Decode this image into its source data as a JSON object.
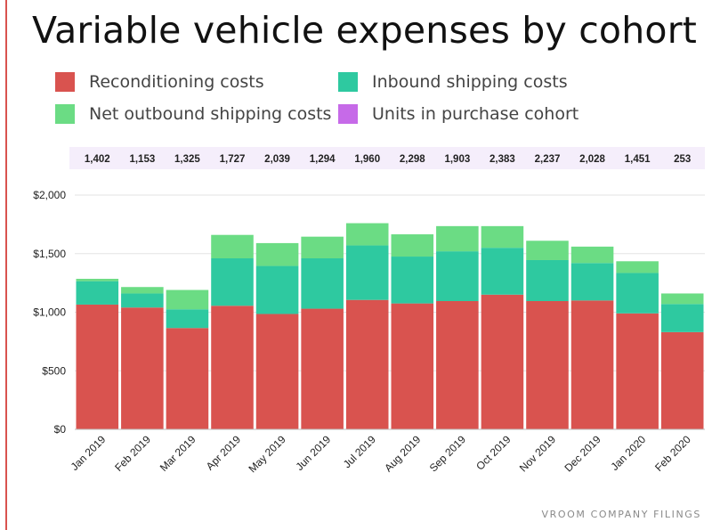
{
  "title": "Variable vehicle expenses by cohort",
  "source": "VROOM COMPANY FILINGS",
  "legend": [
    {
      "label": "Reconditioning costs",
      "color": "#d9534f"
    },
    {
      "label": "Inbound shipping costs",
      "color": "#2ec9a0"
    },
    {
      "label": "Net outbound shipping costs",
      "color": "#6bdc84"
    },
    {
      "label": "Units in purchase cohort",
      "color": "#c66ae8"
    }
  ],
  "chart_data": {
    "type": "bar",
    "stacked": true,
    "title": "Variable vehicle expenses by cohort",
    "categories": [
      "Jan 2019",
      "Feb 2019",
      "Mar 2019",
      "Apr 2019",
      "May 2019",
      "Jun 2019",
      "Jul 2019",
      "Aug 2019",
      "Sep 2019",
      "Oct 2019",
      "Nov 2019",
      "Dec 2019",
      "Jan 2020",
      "Feb 2020"
    ],
    "series": [
      {
        "name": "Reconditioning costs",
        "color": "#d9534f",
        "values": [
          1065,
          1040,
          865,
          1055,
          985,
          1030,
          1105,
          1075,
          1095,
          1150,
          1095,
          1100,
          990,
          830
        ]
      },
      {
        "name": "Inbound shipping costs",
        "color": "#2ec9a0",
        "values": [
          200,
          120,
          160,
          405,
          410,
          430,
          465,
          400,
          425,
          400,
          350,
          320,
          345,
          240
        ]
      },
      {
        "name": "Net outbound shipping costs",
        "color": "#6bdc84",
        "values": [
          20,
          55,
          165,
          200,
          195,
          185,
          190,
          190,
          215,
          185,
          165,
          140,
          100,
          90
        ]
      }
    ],
    "units_in_purchase_cohort": {
      "name": "Units in purchase cohort",
      "color": "#f5eefb",
      "values": [
        "1,402",
        "1,153",
        "1,325",
        "1,727",
        "2,039",
        "1,294",
        "1,960",
        "2,298",
        "1,903",
        "2,383",
        "2,237",
        "2,028",
        "1,451",
        "253"
      ]
    },
    "ylim": [
      0,
      2000
    ],
    "yticks": [
      0,
      500,
      1000,
      1500,
      2000
    ],
    "ytick_labels": [
      "$0",
      "$500",
      "$1,000",
      "$1,500",
      "$2,000"
    ],
    "grid": true,
    "legend_position": "top"
  }
}
